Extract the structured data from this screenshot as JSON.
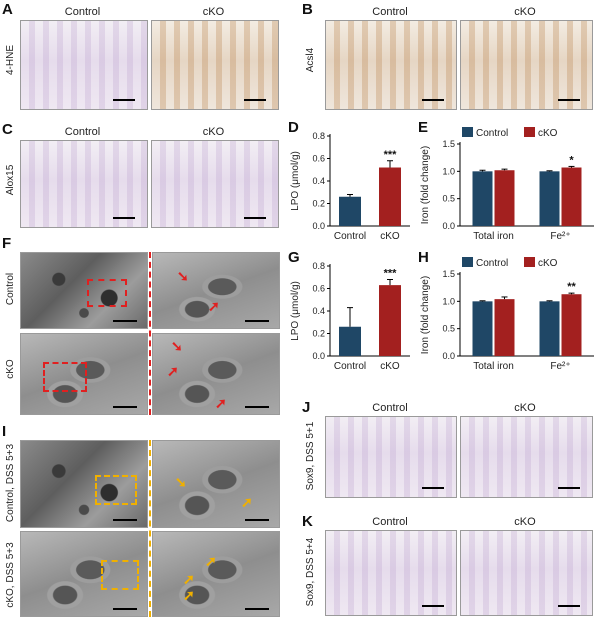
{
  "panels": {
    "A": {
      "letter": "A",
      "row_label": "4-HNE",
      "left_title": "Control",
      "right_title": "cKO"
    },
    "B": {
      "letter": "B",
      "row_label": "Acsl4",
      "left_title": "Control",
      "right_title": "cKO"
    },
    "C": {
      "letter": "C",
      "row_label": "Alox15",
      "left_title": "Control",
      "right_title": "cKO"
    },
    "F": {
      "letter": "F",
      "row1_label": "Control",
      "row2_label": "cKO"
    },
    "I": {
      "letter": "I",
      "row1_label": "Control, DSS 5+3",
      "row2_label": "cKO, DSS 5+3"
    },
    "J": {
      "letter": "J",
      "row_label": "Sox9, DSS 5+1",
      "left_title": "Control",
      "right_title": "cKO"
    },
    "K": {
      "letter": "K",
      "row_label": "Sox9, DSS 5+4",
      "left_title": "Control",
      "right_title": "cKO"
    }
  },
  "colors": {
    "control": "#1f4766",
    "cko": "#a3201f",
    "em_box_red": "#e02020",
    "em_box_orange": "#f0b000"
  },
  "chart_data": [
    {
      "id": "D",
      "letter": "D",
      "type": "bar",
      "ylabel": "LPO (μmol/g)",
      "categories": [
        "Control",
        "cKO"
      ],
      "values": [
        0.26,
        0.52
      ],
      "errors": [
        0.02,
        0.06
      ],
      "ylim": [
        0,
        0.8
      ],
      "yticks": [
        "0.0",
        "0.2",
        "0.4",
        "0.6",
        "0.8"
      ],
      "significance": "***"
    },
    {
      "id": "E",
      "letter": "E",
      "type": "bar",
      "ylabel": "Iron (fold change)",
      "categories": [
        "Total iron",
        "Fe²⁺"
      ],
      "series": [
        {
          "name": "Control",
          "values": [
            1.0,
            1.0
          ],
          "errors": [
            0.02,
            0.01
          ]
        },
        {
          "name": "cKO",
          "values": [
            1.02,
            1.07
          ],
          "errors": [
            0.02,
            0.02
          ]
        }
      ],
      "ylim": [
        0,
        1.5
      ],
      "yticks": [
        "0.0",
        "0.5",
        "1.0",
        "1.5"
      ],
      "significance": [
        "",
        "*"
      ],
      "legend": "top"
    },
    {
      "id": "G",
      "letter": "G",
      "type": "bar",
      "ylabel": "LPO (μmol/g)",
      "categories": [
        "Control",
        "cKO"
      ],
      "values": [
        0.26,
        0.63
      ],
      "errors": [
        0.17,
        0.05
      ],
      "ylim": [
        0,
        0.8
      ],
      "yticks": [
        "0.0",
        "0.2",
        "0.4",
        "0.6",
        "0.8"
      ],
      "significance": "***"
    },
    {
      "id": "H",
      "letter": "H",
      "type": "bar",
      "ylabel": "Iron (fold change)",
      "categories": [
        "Total iron",
        "Fe²⁺"
      ],
      "series": [
        {
          "name": "Control",
          "values": [
            1.0,
            1.0
          ],
          "errors": [
            0.01,
            0.01
          ]
        },
        {
          "name": "cKO",
          "values": [
            1.04,
            1.13
          ],
          "errors": [
            0.04,
            0.02
          ]
        }
      ],
      "ylim": [
        0,
        1.5
      ],
      "yticks": [
        "0.0",
        "0.5",
        "1.0",
        "1.5"
      ],
      "significance": [
        "",
        "**"
      ],
      "legend": "top"
    }
  ]
}
